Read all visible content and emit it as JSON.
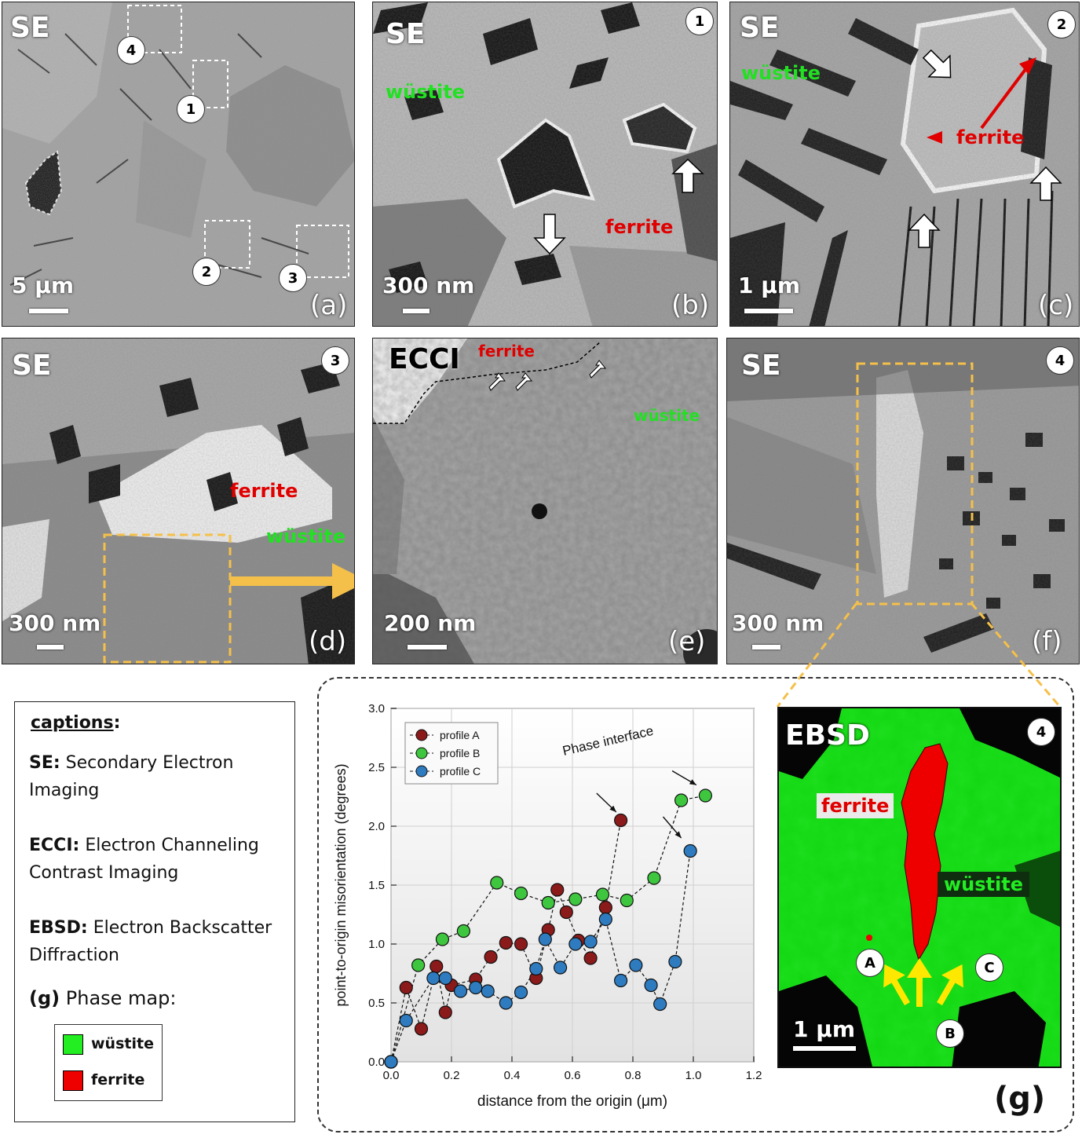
{
  "panels": {
    "a": {
      "mode": "SE",
      "label": "(a)",
      "scale": "5 μm",
      "markers": [
        "1",
        "2",
        "3",
        "4"
      ]
    },
    "b": {
      "mode": "SE",
      "label": "(b)",
      "scale": "300 nm",
      "marker": "1",
      "wustite": "wüstite",
      "ferrite": "ferrite"
    },
    "c": {
      "mode": "SE",
      "label": "(c)",
      "scale": "1 μm",
      "marker": "2",
      "wustite": "wüstite",
      "ferrite": "ferrite"
    },
    "d": {
      "mode": "SE",
      "label": "(d)",
      "scale": "300 nm",
      "marker": "3",
      "wustite": "wüstite",
      "ferrite": "ferrite"
    },
    "e": {
      "mode": "ECCI",
      "label": "(e)",
      "scale": "200 nm",
      "wustite": "wüstite",
      "ferrite": "ferrite"
    },
    "f": {
      "mode": "SE",
      "label": "(f)",
      "scale": "300 nm",
      "marker": "4"
    },
    "g": {
      "mode": "EBSD",
      "label": "(g)",
      "scale": "1 μm",
      "marker": "4",
      "wustite": "wüstite",
      "ferrite": "ferrite",
      "points": [
        "A",
        "B",
        "C"
      ]
    }
  },
  "captions": {
    "title": "captions",
    "colon": ":",
    "se_key": "SE:",
    "se_text": "Secondary Electron Imaging",
    "ecci_key": "ECCI:",
    "ecci_text": "Electron Channeling Contrast Imaging",
    "ebsd_key": "EBSD:",
    "ebsd_text": "Electron Backscatter Diffraction",
    "phase_key": "(g)",
    "phase_text": "Phase map:",
    "legend": [
      {
        "name": "wüstite",
        "color": "#22ee22"
      },
      {
        "name": "ferrite",
        "color": "#ee0000"
      }
    ]
  },
  "chart_data": {
    "type": "scatter",
    "xlabel": "distance from the origin (μm)",
    "ylabel": "point-to-origin misorientation (degrees)",
    "xlim": [
      0.0,
      1.2
    ],
    "ylim": [
      0.0,
      3.0
    ],
    "xticks": [
      "0.0",
      "0.2",
      "0.4",
      "0.6",
      "0.8",
      "1.0",
      "1.2"
    ],
    "yticks": [
      "0.0",
      "0.5",
      "1.0",
      "1.5",
      "2.0",
      "2.5",
      "3.0"
    ],
    "grid": true,
    "legend_position": "top-left",
    "annotation": "Phase interface",
    "series": [
      {
        "name": "profile A",
        "color": "#8b1a1a",
        "x": [
          0.0,
          0.05,
          0.1,
          0.15,
          0.18,
          0.2,
          0.28,
          0.33,
          0.38,
          0.43,
          0.48,
          0.52,
          0.55,
          0.58,
          0.62,
          0.66,
          0.71,
          0.76
        ],
        "y": [
          0.0,
          0.63,
          0.28,
          0.81,
          0.42,
          0.65,
          0.7,
          0.89,
          1.01,
          1.0,
          0.71,
          1.12,
          1.46,
          1.27,
          1.03,
          0.88,
          1.31,
          2.05
        ]
      },
      {
        "name": "profile B",
        "color": "#3ec63e",
        "x": [
          0.0,
          0.09,
          0.17,
          0.24,
          0.35,
          0.43,
          0.52,
          0.61,
          0.7,
          0.78,
          0.87,
          0.96,
          1.04
        ],
        "y": [
          0.0,
          0.82,
          1.04,
          1.11,
          1.52,
          1.43,
          1.35,
          1.38,
          1.42,
          1.37,
          1.56,
          2.22,
          2.26
        ]
      },
      {
        "name": "profile C",
        "color": "#2e7bbf",
        "x": [
          0.0,
          0.05,
          0.14,
          0.18,
          0.23,
          0.28,
          0.32,
          0.38,
          0.43,
          0.48,
          0.51,
          0.56,
          0.61,
          0.66,
          0.71,
          0.76,
          0.81,
          0.86,
          0.89,
          0.94,
          0.99
        ],
        "y": [
          0.0,
          0.35,
          0.71,
          0.71,
          0.6,
          0.63,
          0.6,
          0.5,
          0.59,
          0.79,
          1.04,
          0.8,
          1.0,
          1.02,
          1.21,
          0.69,
          0.82,
          0.65,
          0.49,
          0.85,
          1.79
        ]
      }
    ]
  }
}
